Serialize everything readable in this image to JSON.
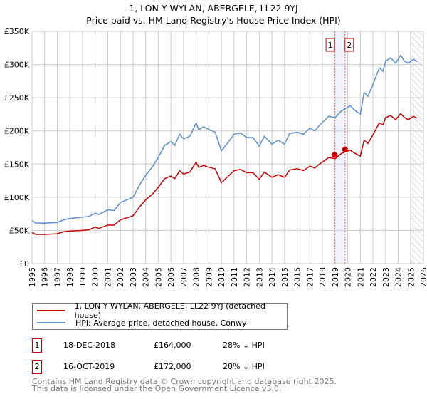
{
  "chart_data": {
    "type": "line",
    "title": "1, LON Y WYLAN, ABERGELE, LL22 9YJ",
    "subtitle": "Price paid vs. HM Land Registry's House Price Index (HPI)",
    "xlim": [
      1995,
      2026
    ],
    "ylim": [
      0,
      350000
    ],
    "y_ticks": [
      0,
      50000,
      100000,
      150000,
      200000,
      250000,
      300000,
      350000
    ],
    "y_tick_labels": [
      "£0",
      "£50K",
      "£100K",
      "£150K",
      "£200K",
      "£250K",
      "£300K",
      "£350K"
    ],
    "x_tick_labels": [
      "1995",
      "1996",
      "1997",
      "1998",
      "1999",
      "2000",
      "2001",
      "2002",
      "2003",
      "2004",
      "2005",
      "2006",
      "2007",
      "2008",
      "2009",
      "2010",
      "2011",
      "2012",
      "2013",
      "2014",
      "2015",
      "2016",
      "2017",
      "2018",
      "2019",
      "2020",
      "2021",
      "2022",
      "2023",
      "2024",
      "2025",
      "2026"
    ],
    "grid": true,
    "x": [
      1995,
      1995.3,
      1996,
      1997,
      1997.5,
      1998,
      1999,
      1999.5,
      2000,
      2000.3,
      2001,
      2001.5,
      2002,
      2002.5,
      2003,
      2003.5,
      2004,
      2004.5,
      2005,
      2005.5,
      2006,
      2006.3,
      2006.7,
      2007,
      2007.5,
      2008,
      2008.2,
      2008.6,
      2009,
      2009.5,
      2010,
      2010.5,
      2011,
      2011.5,
      2012,
      2012.5,
      2013,
      2013.4,
      2014,
      2014.5,
      2015,
      2015.4,
      2016,
      2016.5,
      2017,
      2017.4,
      2017.7,
      2018,
      2018.5,
      2019,
      2019.5,
      2020.2,
      2020.5,
      2021,
      2021.3,
      2021.6,
      2022,
      2022.5,
      2022.8,
      2023,
      2023.4,
      2023.8,
      2024.2,
      2024.5,
      2024.8,
      2025.2,
      2025.5
    ],
    "series": [
      {
        "name": "1, LON Y WYLAN, ABERGELE, LL22 9YJ (detached house)",
        "color": "#cc0000",
        "values": [
          47,
          44,
          44,
          45,
          48,
          49,
          50,
          51,
          55,
          53,
          58,
          58,
          66,
          69,
          72,
          85,
          96,
          104,
          115,
          128,
          132,
          128,
          140,
          135,
          138,
          153,
          145,
          148,
          145,
          143,
          122,
          131,
          140,
          142,
          137,
          137,
          127,
          138,
          130,
          134,
          130,
          141,
          143,
          140,
          147,
          144,
          149,
          153,
          160,
          158,
          166,
          171,
          167,
          162,
          186,
          181,
          194,
          212,
          209,
          220,
          223,
          217,
          226,
          220,
          217,
          222,
          219
        ]
      },
      {
        "name": "HPI: Average price, detached house, Conwy",
        "color": "#5b8fd0",
        "values": [
          65,
          61,
          61,
          62,
          66,
          68,
          70,
          71,
          76,
          74,
          81,
          80,
          92,
          96,
          100,
          118,
          133,
          145,
          160,
          178,
          184,
          178,
          195,
          188,
          192,
          212,
          202,
          206,
          202,
          198,
          170,
          182,
          195,
          197,
          190,
          190,
          177,
          192,
          180,
          186,
          180,
          196,
          198,
          195,
          204,
          200,
          207,
          213,
          222,
          220,
          230,
          238,
          232,
          225,
          258,
          252,
          270,
          295,
          290,
          305,
          310,
          302,
          314,
          305,
          302,
          308,
          304
        ]
      }
    ],
    "value_unit": "thousands GBP",
    "sales": [
      {
        "id": "1",
        "x": 2018.96,
        "value": 164000,
        "date": "18-DEC-2018",
        "price": "£164,000",
        "hpi": "28% ↓ HPI"
      },
      {
        "id": "2",
        "x": 2019.79,
        "value": 172000,
        "date": "16-OCT-2019",
        "price": "£172,000",
        "hpi": "28% ↓ HPI"
      }
    ],
    "forecast_from": 2025.0,
    "legend_placement": "below"
  },
  "footer": {
    "line1": "Contains HM Land Registry data © Crown copyright and database right 2025.",
    "line2": "This data is licensed under the Open Government Licence v3.0."
  }
}
